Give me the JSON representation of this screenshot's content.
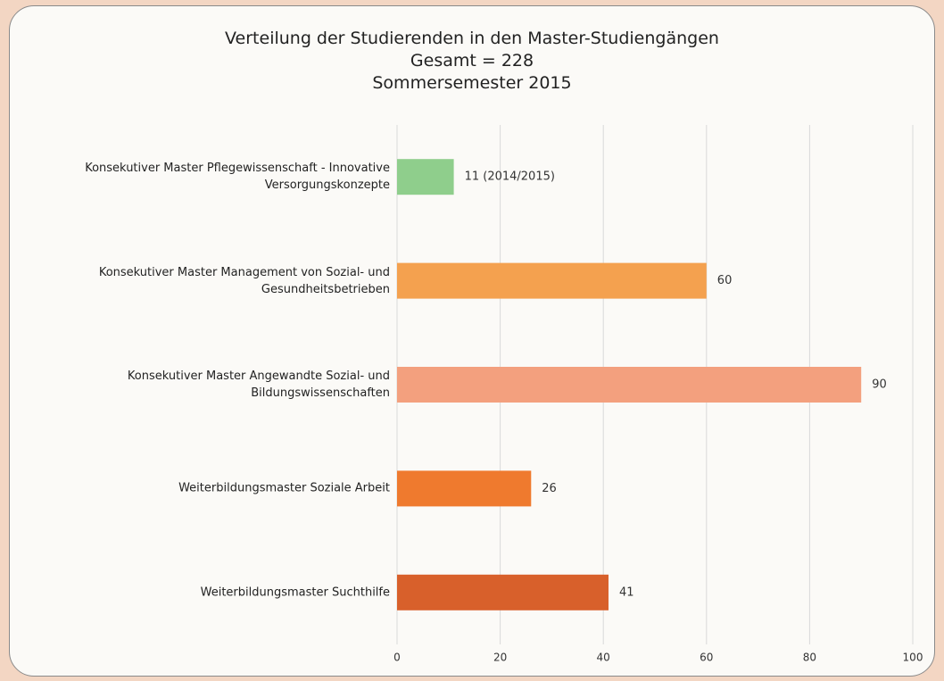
{
  "chart_data": {
    "type": "bar",
    "orientation": "horizontal",
    "title": [
      "Verteilung der Studierenden in den Master-Studiengängen",
      "Gesamt = 228",
      "Sommersemester 2015"
    ],
    "categories": [
      "Konsekutiver Master Pflegewissenschaft - Innovative Versorgungskonzepte",
      "Konsekutiver Master Management von Sozial- und Gesundheitsbetrieben",
      "Konsekutiver Master Angewandte Sozial- und Bildungswissenschaften",
      "Weiterbildungsmaster Soziale Arbeit",
      "Weiterbildungsmaster Suchthilfe"
    ],
    "values": [
      11,
      60,
      90,
      26,
      41
    ],
    "value_labels": [
      "11 (2014/2015)",
      "60",
      "90",
      "26",
      "41"
    ],
    "colors": [
      "#8fce8c",
      "#f4a14f",
      "#f3a07e",
      "#ef7a2e",
      "#d8602b"
    ],
    "xlim": [
      0,
      100
    ],
    "xticks": [
      0,
      20,
      40,
      60,
      80,
      100
    ],
    "grid": true
  }
}
